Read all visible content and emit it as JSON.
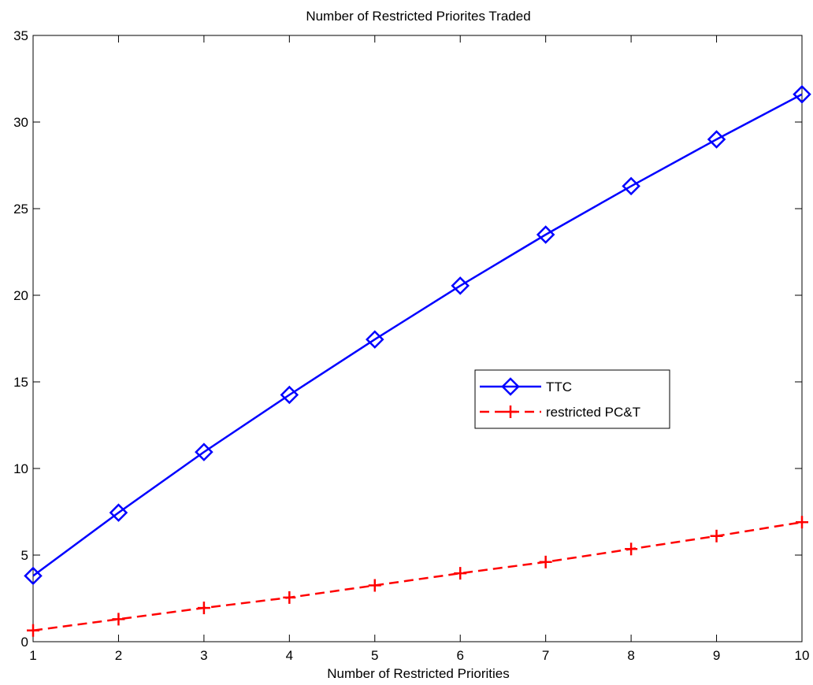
{
  "chart_data": {
    "type": "line",
    "title": "Number of Restricted Priorites Traded",
    "xlabel": "Number of Restricted Priorities",
    "ylabel": "",
    "x": [
      1,
      2,
      3,
      4,
      5,
      6,
      7,
      8,
      9,
      10
    ],
    "xlim": [
      1,
      10
    ],
    "ylim": [
      0,
      35
    ],
    "xticks": [
      1,
      2,
      3,
      4,
      5,
      6,
      7,
      8,
      9,
      10
    ],
    "yticks": [
      0,
      5,
      10,
      15,
      20,
      25,
      30,
      35
    ],
    "grid": false,
    "legend_position": "center-right",
    "series": [
      {
        "name": "TTC",
        "values": [
          3.8,
          7.45,
          10.95,
          14.25,
          17.45,
          20.55,
          23.5,
          26.3,
          29.0,
          31.6
        ],
        "color": "#0000ff",
        "line_style": "solid",
        "marker": "diamond"
      },
      {
        "name": "restricted PC&T",
        "values": [
          0.65,
          1.3,
          1.95,
          2.55,
          3.25,
          3.95,
          4.6,
          5.35,
          6.1,
          6.9
        ],
        "color": "#ff0000",
        "line_style": "dashed",
        "marker": "plus"
      }
    ]
  }
}
